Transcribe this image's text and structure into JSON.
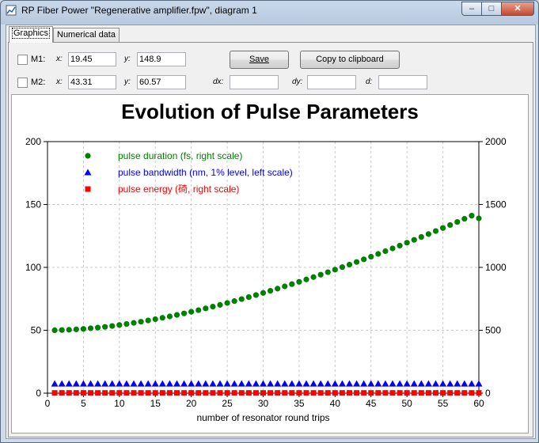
{
  "window": {
    "title": "RP Fiber Power \"Regenerative amplifier.fpw\", diagram 1",
    "min_glyph": "–",
    "max_glyph": "□",
    "close_glyph": "✕"
  },
  "tabs": [
    {
      "label": "Graphics",
      "active": true
    },
    {
      "label": "Numerical data",
      "active": false
    }
  ],
  "markers": {
    "m1": {
      "label": "M1:",
      "x_label": "x:",
      "x": "19.45",
      "y_label": "y:",
      "y": "148.9",
      "checked": false
    },
    "m2": {
      "label": "M2:",
      "x_label": "x:",
      "x": "43.31",
      "y_label": "y:",
      "y": "60.57",
      "checked": false
    },
    "dx_label": "dx:",
    "dx": "",
    "dy_label": "dy:",
    "dy": "",
    "d_label": "d:",
    "d": ""
  },
  "buttons": {
    "save": "Save",
    "copy": "Copy to clipboard"
  },
  "chart_data": {
    "type": "scatter",
    "title": "Evolution of Pulse Parameters",
    "xlabel": "number of resonator round trips",
    "ylabel_left": "",
    "ylabel_right": "",
    "xlim": [
      0,
      60
    ],
    "ylim_left": [
      0,
      200
    ],
    "ylim_right": [
      0,
      2000
    ],
    "x_ticks": [
      0,
      5,
      10,
      15,
      20,
      25,
      30,
      35,
      40,
      45,
      50,
      55,
      60
    ],
    "y_ticks_left": [
      0,
      50,
      100,
      150,
      200
    ],
    "y_ticks_right": [
      0,
      500,
      1000,
      1500,
      2000
    ],
    "grid": true,
    "legend_position": "top-left",
    "series": [
      {
        "name": "pulse duration (fs, right scale)",
        "axis": "right",
        "marker": "circle",
        "color": "#008000",
        "x": [
          1,
          2,
          3,
          4,
          5,
          6,
          7,
          8,
          9,
          10,
          11,
          12,
          13,
          14,
          15,
          16,
          17,
          18,
          19,
          20,
          21,
          22,
          23,
          24,
          25,
          26,
          27,
          28,
          29,
          30,
          31,
          32,
          33,
          34,
          35,
          36,
          37,
          38,
          39,
          40,
          41,
          42,
          43,
          44,
          45,
          46,
          47,
          48,
          49,
          50,
          51,
          52,
          53,
          54,
          55,
          56,
          57,
          58,
          59,
          60
        ],
        "values": [
          500,
          502,
          504,
          507,
          511,
          516,
          521,
          527,
          534,
          542,
          550,
          559,
          568,
          578,
          588,
          599,
          610,
          622,
          634,
          647,
          660,
          674,
          688,
          702,
          717,
          732,
          748,
          764,
          780,
          797,
          814,
          831,
          849,
          867,
          885,
          904,
          923,
          942,
          962,
          982,
          1002,
          1022,
          1043,
          1064,
          1085,
          1107,
          1129,
          1151,
          1173,
          1196,
          1219,
          1242,
          1265,
          1289,
          1313,
          1337,
          1361,
          1386,
          1411,
          1390
        ]
      },
      {
        "name": "pulse bandwidth (nm, 1% level, left scale)",
        "axis": "left",
        "marker": "triangle",
        "color": "#0000ff",
        "x": [
          1,
          2,
          3,
          4,
          5,
          6,
          7,
          8,
          9,
          10,
          11,
          12,
          13,
          14,
          15,
          16,
          17,
          18,
          19,
          20,
          21,
          22,
          23,
          24,
          25,
          26,
          27,
          28,
          29,
          30,
          31,
          32,
          33,
          34,
          35,
          36,
          37,
          38,
          39,
          40,
          41,
          42,
          43,
          44,
          45,
          46,
          47,
          48,
          49,
          50,
          51,
          52,
          53,
          54,
          55,
          56,
          57,
          58,
          59,
          60
        ],
        "values": [
          7.5,
          7.5,
          7.5,
          7.5,
          7.5,
          7.5,
          7.5,
          7.5,
          7.5,
          7.5,
          7.5,
          7.5,
          7.5,
          7.5,
          7.5,
          7.5,
          7.5,
          7.5,
          7.5,
          7.5,
          7.5,
          7.5,
          7.5,
          7.5,
          7.5,
          7.5,
          7.5,
          7.5,
          7.5,
          7.5,
          7.5,
          7.5,
          7.5,
          7.5,
          7.5,
          7.5,
          7.5,
          7.5,
          7.5,
          7.5,
          7.5,
          7.5,
          7.5,
          7.5,
          7.5,
          7.5,
          7.5,
          7.5,
          7.5,
          7.5,
          7.5,
          7.5,
          7.5,
          7.5,
          7.5,
          7.5,
          7.5,
          7.5,
          7.5,
          7.5
        ]
      },
      {
        "name": "pulse energy (碕, right scale)",
        "axis": "right",
        "marker": "square",
        "color": "#ff0000",
        "x": [
          1,
          2,
          3,
          4,
          5,
          6,
          7,
          8,
          9,
          10,
          11,
          12,
          13,
          14,
          15,
          16,
          17,
          18,
          19,
          20,
          21,
          22,
          23,
          24,
          25,
          26,
          27,
          28,
          29,
          30,
          31,
          32,
          33,
          34,
          35,
          36,
          37,
          38,
          39,
          40,
          41,
          42,
          43,
          44,
          45,
          46,
          47,
          48,
          49,
          50,
          51,
          52,
          53,
          54,
          55,
          56,
          57,
          58,
          59,
          60
        ],
        "values": [
          2,
          2,
          2,
          2,
          2,
          2,
          2,
          2,
          2,
          2,
          2,
          2,
          2,
          2,
          2,
          2,
          2,
          2,
          2,
          2,
          2,
          2,
          2,
          2,
          2,
          2,
          2,
          2,
          2,
          2,
          2,
          2,
          2,
          2,
          2,
          2,
          2,
          2,
          2,
          2,
          2,
          2,
          2,
          2,
          2,
          2,
          2,
          2,
          2,
          2,
          2,
          2,
          2,
          2,
          2,
          2,
          2,
          2,
          2,
          2
        ]
      }
    ]
  }
}
